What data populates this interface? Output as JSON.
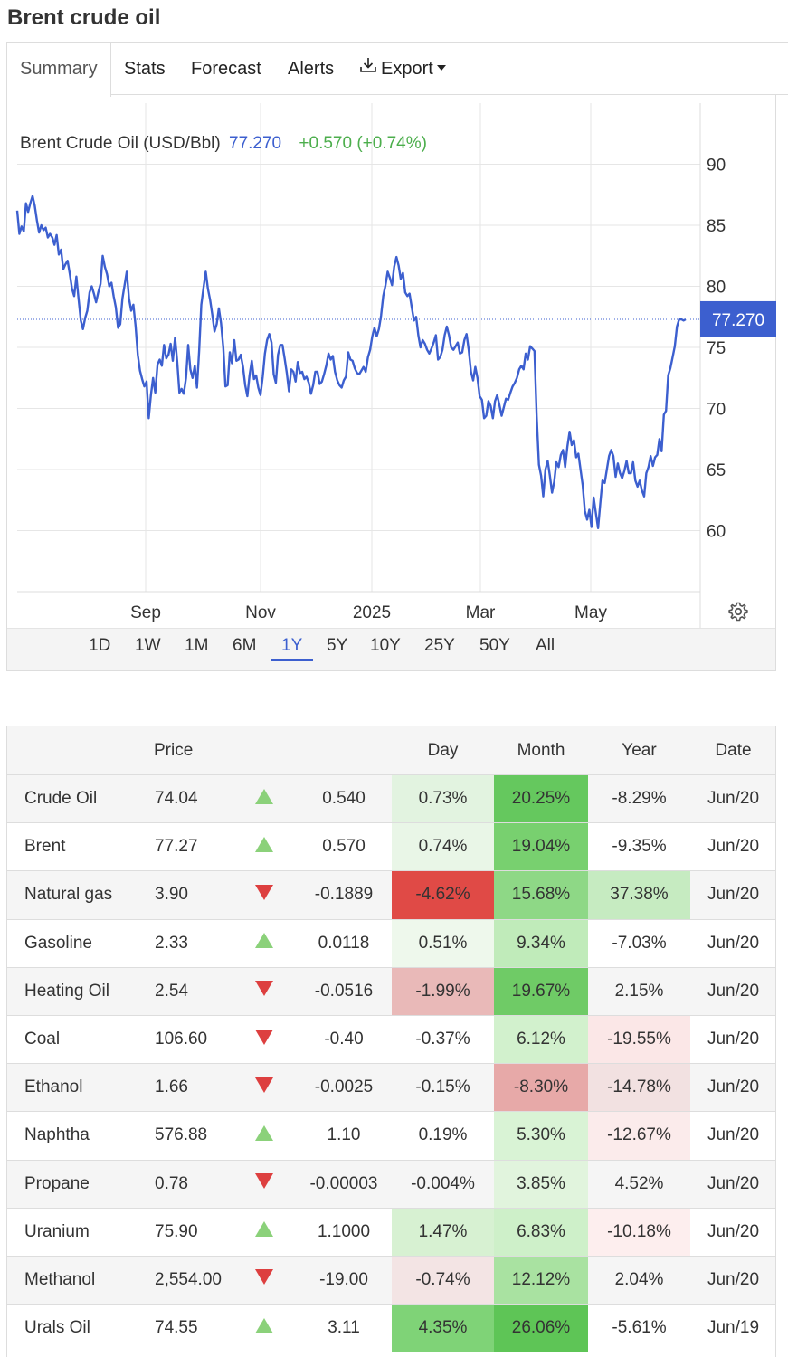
{
  "page": {
    "title": "Brent crude oil"
  },
  "tabs": [
    {
      "label": "Summary",
      "active": true
    },
    {
      "label": "Stats"
    },
    {
      "label": "Forecast"
    },
    {
      "label": "Alerts"
    },
    {
      "label": "Export",
      "icon": "download-icon",
      "dropdown": true
    }
  ],
  "chart_header": {
    "name": "Brent Crude Oil (USD/Bbl)",
    "price": "77.270",
    "change": "+0.570 (+0.74%)"
  },
  "chart_data": {
    "type": "line",
    "title": "",
    "xlabel": "",
    "ylabel": "",
    "ylim": [
      55,
      95
    ],
    "y_ticks": [
      60,
      65,
      70,
      75,
      80,
      85,
      90
    ],
    "x_tick_labels": [
      "Sep",
      "Nov",
      "2025",
      "Mar",
      "May"
    ],
    "grid": true,
    "line_color": "#3c5fcf",
    "current_price_label": "77.270",
    "series": [
      {
        "values": [
          86.2,
          84.3,
          84.9,
          84.5,
          86.8,
          86.1,
          86.8,
          87.4,
          86.6,
          85.4,
          84.4,
          85.0,
          84.6,
          84.8,
          84.0,
          84.3,
          84.0,
          83.4,
          84.2,
          82.6,
          83.0,
          81.4,
          81.8,
          82.1,
          81.0,
          79.8,
          79.2,
          80.8,
          79.0,
          77.2,
          76.5,
          77.4,
          78.0,
          79.5,
          80.0,
          79.4,
          78.7,
          79.5,
          80.2,
          82.5,
          81.6,
          81.0,
          80.0,
          80.3,
          79.2,
          78.3,
          76.6,
          76.9,
          79.0,
          80.1,
          81.2,
          79.0,
          78.0,
          78.5,
          76.8,
          74.4,
          73.1,
          72.4,
          71.8,
          72.2,
          69.2,
          71.1,
          72.5,
          71.3,
          73.6,
          74.0,
          73.5,
          75.2,
          74.1,
          74.4,
          75.3,
          73.9,
          75.8,
          73.8,
          71.3,
          71.6,
          71.2,
          72.5,
          75.2,
          73.2,
          72.5,
          73.5,
          71.7,
          74.7,
          78.5,
          79.9,
          81.2,
          79.8,
          78.9,
          77.7,
          76.3,
          76.9,
          78.2,
          77.0,
          75.0,
          71.8,
          71.9,
          74.6,
          73.7,
          75.6,
          73.9,
          74.0,
          74.4,
          73.4,
          71.9,
          71.0,
          72.7,
          73.9,
          72.4,
          72.7,
          71.7,
          71.1,
          72.6,
          74.5,
          75.6,
          76.1,
          75.4,
          72.8,
          72.1,
          74.4,
          75.2,
          75.2,
          74.1,
          72.9,
          71.4,
          73.2,
          73.0,
          72.2,
          73.8,
          72.9,
          73.0,
          72.4,
          72.6,
          72.1,
          71.2,
          71.9,
          73.0,
          73.0,
          72.0,
          72.2,
          72.8,
          73.5,
          74.5,
          74.0,
          74.3,
          73.0,
          72.3,
          71.9,
          71.7,
          72.3,
          72.6,
          74.6,
          74.0,
          73.9,
          73.3,
          72.9,
          72.8,
          73.1,
          73.4,
          73.0,
          74.2,
          74.8,
          75.9,
          76.6,
          75.9,
          76.5,
          77.6,
          79.2,
          80.1,
          81.2,
          80.7,
          80.1,
          81.6,
          82.4,
          81.7,
          80.6,
          81.1,
          79.5,
          79.2,
          79.4,
          78.3,
          77.2,
          77.5,
          76.0,
          75.0,
          75.6,
          75.3,
          74.8,
          74.5,
          74.9,
          75.4,
          76.0,
          74.0,
          74.2,
          74.8,
          76.0,
          76.7,
          76.0,
          75.0,
          74.8,
          75.1,
          75.4,
          74.5,
          74.6,
          75.6,
          76.1,
          74.8,
          73.0,
          72.3,
          73.4,
          72.5,
          71.0,
          70.7,
          69.2,
          69.4,
          70.6,
          70.2,
          69.2,
          70.6,
          71.1,
          70.3,
          69.4,
          70.1,
          70.8,
          70.7,
          71.3,
          71.8,
          72.1,
          72.5,
          73.2,
          73.5,
          73.2,
          74.5,
          74.0,
          75.1,
          74.9,
          74.7,
          69.4,
          65.4,
          64.5,
          62.8,
          65.0,
          65.7,
          64.5,
          63.1,
          64.0,
          65.6,
          65.2,
          66.2,
          66.6,
          65.2,
          66.9,
          68.1,
          67.0,
          67.4,
          66.0,
          66.3,
          65.0,
          63.7,
          61.6,
          60.9,
          61.7,
          60.3,
          62.7,
          61.4,
          60.2,
          62.2,
          64.1,
          63.9,
          65.0,
          66.1,
          66.6,
          66.1,
          64.4,
          65.5,
          64.7,
          64.3,
          64.9,
          65.7,
          64.7,
          64.7,
          65.6,
          64.1,
          63.6,
          64.1,
          63.3,
          62.8,
          64.7,
          65.2,
          66.1,
          65.3,
          66.0,
          66.2,
          67.5,
          66.5,
          69.5,
          69.8,
          72.7,
          73.3,
          74.2,
          75.1,
          76.7,
          77.3,
          77.3,
          77.2,
          77.3
        ]
      }
    ]
  },
  "ranges": [
    "1D",
    "1W",
    "1M",
    "6M",
    "1Y",
    "5Y",
    "10Y",
    "25Y",
    "50Y",
    "All"
  ],
  "active_range": "1Y",
  "table": {
    "headers": [
      "",
      "Price",
      "",
      "",
      "Day",
      "Month",
      "Year",
      "Date"
    ],
    "rows": [
      {
        "name": "Crude Oil",
        "price": "74.04",
        "dir": "up",
        "change": "0.540",
        "day": "0.73%",
        "month": "20.25%",
        "year": "-8.29%",
        "date": "Jun/20",
        "day_color": "#e2f3e0",
        "month_color": "#65c85e",
        "year_color": ""
      },
      {
        "name": "Brent",
        "price": "77.27",
        "dir": "up",
        "change": "0.570",
        "day": "0.74%",
        "month": "19.04%",
        "year": "-9.35%",
        "date": "Jun/20",
        "day_color": "#e9f6e7",
        "month_color": "#78d06f",
        "year_color": ""
      },
      {
        "name": "Natural gas",
        "price": "3.90",
        "dir": "down",
        "change": "-0.1889",
        "day": "-4.62%",
        "month": "15.68%",
        "year": "37.38%",
        "date": "Jun/20",
        "day_color": "#e04a46",
        "month_color": "#8ed886",
        "year_color": "#c6ebc1"
      },
      {
        "name": "Gasoline",
        "price": "2.33",
        "dir": "up",
        "change": "0.0118",
        "day": "0.51%",
        "month": "9.34%",
        "year": "-7.03%",
        "date": "Jun/20",
        "day_color": "#eef8ec",
        "month_color": "#c0ebba",
        "year_color": ""
      },
      {
        "name": "Heating Oil",
        "price": "2.54",
        "dir": "down",
        "change": "-0.0516",
        "day": "-1.99%",
        "month": "19.67%",
        "year": "2.15%",
        "date": "Jun/20",
        "day_color": "#e9b9b8",
        "month_color": "#6fcb66",
        "year_color": ""
      },
      {
        "name": "Coal",
        "price": "106.60",
        "dir": "down",
        "change": "-0.40",
        "day": "-0.37%",
        "month": "6.12%",
        "year": "-19.55%",
        "date": "Jun/20",
        "day_color": "",
        "month_color": "#d2f1cd",
        "year_color": "#fbe7e7"
      },
      {
        "name": "Ethanol",
        "price": "1.66",
        "dir": "down",
        "change": "-0.0025",
        "day": "-0.15%",
        "month": "-8.30%",
        "year": "-14.78%",
        "date": "Jun/20",
        "day_color": "",
        "month_color": "#e7a9a8",
        "year_color": "#f2e1e1"
      },
      {
        "name": "Naphtha",
        "price": "576.88",
        "dir": "up",
        "change": "1.10",
        "day": "0.19%",
        "month": "5.30%",
        "year": "-12.67%",
        "date": "Jun/20",
        "day_color": "",
        "month_color": "#d9f3d5",
        "year_color": "#fbebeb"
      },
      {
        "name": "Propane",
        "price": "0.78",
        "dir": "down",
        "change": "-0.00003",
        "day": "-0.004%",
        "month": "3.85%",
        "year": "4.52%",
        "date": "Jun/20",
        "day_color": "",
        "month_color": "#e1f4dd",
        "year_color": ""
      },
      {
        "name": "Uranium",
        "price": "75.90",
        "dir": "up",
        "change": "1.1000",
        "day": "1.47%",
        "month": "6.83%",
        "year": "-10.18%",
        "date": "Jun/20",
        "day_color": "#d7f1d2",
        "month_color": "#cef0c9",
        "year_color": "#fdeeee"
      },
      {
        "name": "Methanol",
        "price": "2,554.00",
        "dir": "down",
        "change": "-19.00",
        "day": "-0.74%",
        "month": "12.12%",
        "year": "2.04%",
        "date": "Jun/20",
        "day_color": "#f3e4e4",
        "month_color": "#a9e2a1",
        "year_color": ""
      },
      {
        "name": "Urals Oil",
        "price": "74.55",
        "dir": "up",
        "change": "3.11",
        "day": "4.35%",
        "month": "26.06%",
        "year": "-5.61%",
        "date": "Jun/19",
        "day_color": "#7fd377",
        "month_color": "#5ec556",
        "year_color": ""
      }
    ]
  }
}
